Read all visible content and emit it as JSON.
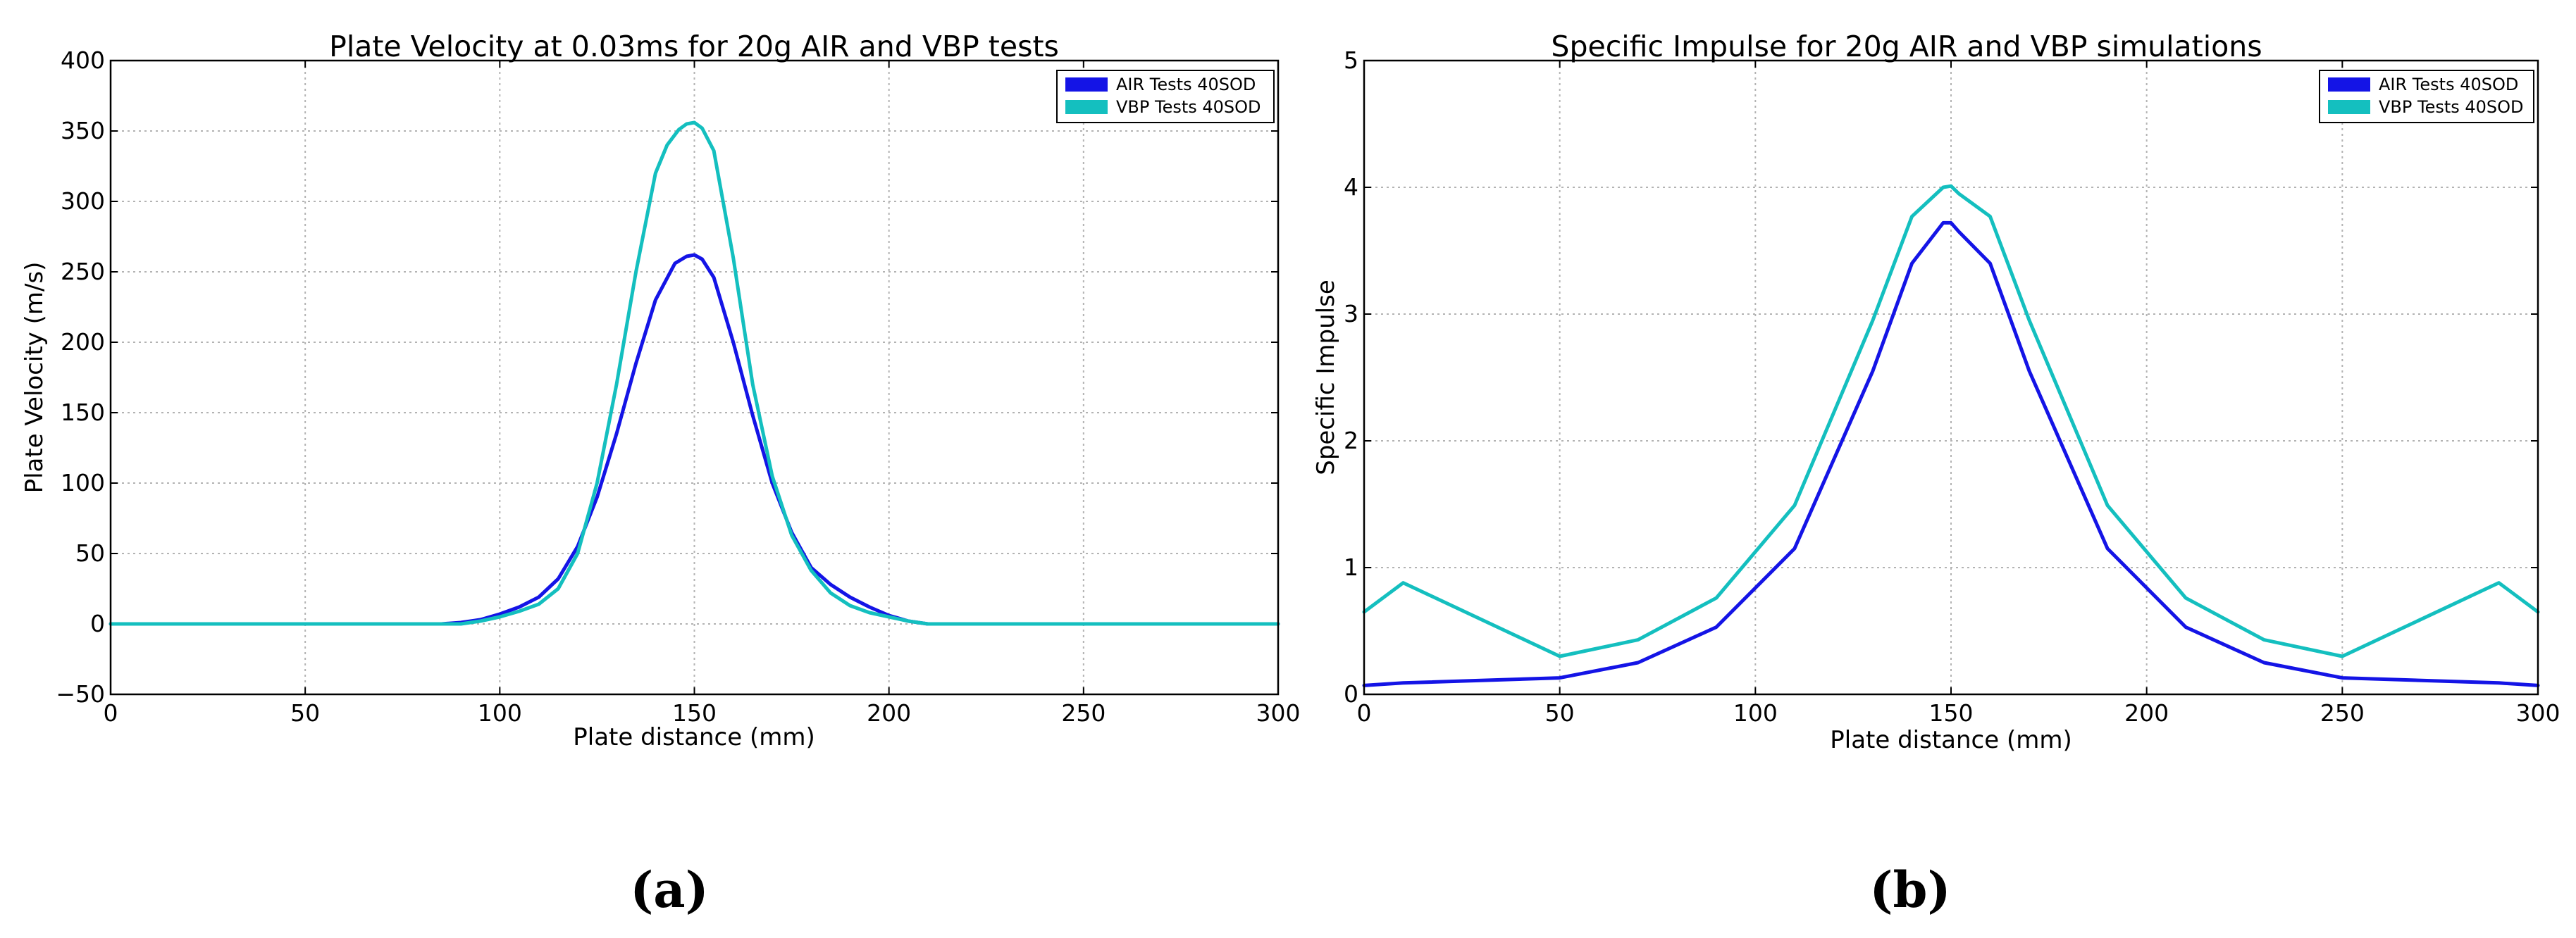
{
  "figure": {
    "panel_labels": [
      "(a)",
      "(b)"
    ]
  },
  "chart_data": [
    {
      "type": "line",
      "title": "Plate Velocity at 0.03ms for 20g AIR and VBP tests",
      "xlabel": "Plate distance (mm)",
      "ylabel": "Plate Velocity (m/s)",
      "xlim": [
        0,
        300
      ],
      "ylim": [
        -50,
        400
      ],
      "xticks": [
        0,
        50,
        100,
        150,
        200,
        250,
        300
      ],
      "yticks": [
        -50,
        0,
        50,
        100,
        150,
        200,
        250,
        300,
        350,
        400
      ],
      "xtick_labels": [
        "0",
        "50",
        "100",
        "150",
        "200",
        "250",
        "300"
      ],
      "ytick_labels": [
        "−50",
        "0",
        "50",
        "100",
        "150",
        "200",
        "250",
        "300",
        "350",
        "400"
      ],
      "grid": true,
      "legend_position": "top-right",
      "series": [
        {
          "name": "AIR Tests 40SOD",
          "color": "#1414e6",
          "x": [
            0,
            50,
            85,
            90,
            95,
            100,
            105,
            110,
            115,
            120,
            125,
            130,
            135,
            140,
            145,
            148,
            150,
            152,
            155,
            160,
            165,
            170,
            175,
            180,
            185,
            190,
            195,
            200,
            205,
            210,
            215,
            250,
            300
          ],
          "y": [
            0,
            0,
            0,
            1,
            3,
            7,
            12,
            19,
            32,
            55,
            90,
            135,
            185,
            230,
            256,
            261,
            262,
            259,
            246,
            200,
            148,
            100,
            65,
            40,
            28,
            19,
            12,
            6,
            2,
            0,
            0,
            0,
            0
          ]
        },
        {
          "name": "VBP Tests 40SOD",
          "color": "#14bfbf",
          "x": [
            0,
            50,
            85,
            90,
            95,
            100,
            105,
            110,
            115,
            120,
            125,
            130,
            135,
            140,
            143,
            146,
            148,
            150,
            152,
            155,
            160,
            165,
            170,
            175,
            180,
            185,
            190,
            195,
            200,
            205,
            210,
            215,
            250,
            300
          ],
          "y": [
            0,
            0,
            0,
            0,
            2,
            5,
            9,
            14,
            25,
            50,
            100,
            170,
            250,
            320,
            340,
            351,
            355,
            356,
            352,
            336,
            260,
            170,
            105,
            63,
            38,
            22,
            13,
            8,
            5,
            2,
            0,
            0,
            0,
            0
          ]
        }
      ]
    },
    {
      "type": "line",
      "title": "Specific Impulse for 20g AIR and VBP simulations",
      "xlabel": "Plate distance (mm)",
      "ylabel": "Specific Impulse",
      "xlim": [
        0,
        300
      ],
      "ylim": [
        0,
        5
      ],
      "xticks": [
        0,
        50,
        100,
        150,
        200,
        250,
        300
      ],
      "yticks": [
        0,
        1,
        2,
        3,
        4,
        5
      ],
      "xtick_labels": [
        "0",
        "50",
        "100",
        "150",
        "200",
        "250",
        "300"
      ],
      "ytick_labels": [
        "0",
        "1",
        "2",
        "3",
        "4",
        "5"
      ],
      "grid": true,
      "legend_position": "top-right",
      "series": [
        {
          "name": "AIR Tests 40SOD",
          "color": "#1414e6",
          "x": [
            0,
            10,
            50,
            70,
            90,
            110,
            130,
            140,
            148,
            150,
            152,
            160,
            170,
            190,
            210,
            230,
            250,
            290,
            300
          ],
          "y": [
            0.07,
            0.09,
            0.13,
            0.25,
            0.53,
            1.15,
            2.55,
            3.4,
            3.72,
            3.72,
            3.65,
            3.4,
            2.55,
            1.15,
            0.53,
            0.25,
            0.13,
            0.09,
            0.07
          ]
        },
        {
          "name": "VBP Tests 40SOD",
          "color": "#14bfbf",
          "x": [
            0,
            10,
            50,
            70,
            90,
            110,
            130,
            140,
            148,
            150,
            152,
            160,
            170,
            190,
            210,
            230,
            250,
            290,
            300
          ],
          "y": [
            0.65,
            0.88,
            0.3,
            0.43,
            0.76,
            1.49,
            2.95,
            3.77,
            4.0,
            4.01,
            3.95,
            3.77,
            2.95,
            1.49,
            0.76,
            0.43,
            0.3,
            0.88,
            0.65
          ]
        }
      ]
    }
  ]
}
